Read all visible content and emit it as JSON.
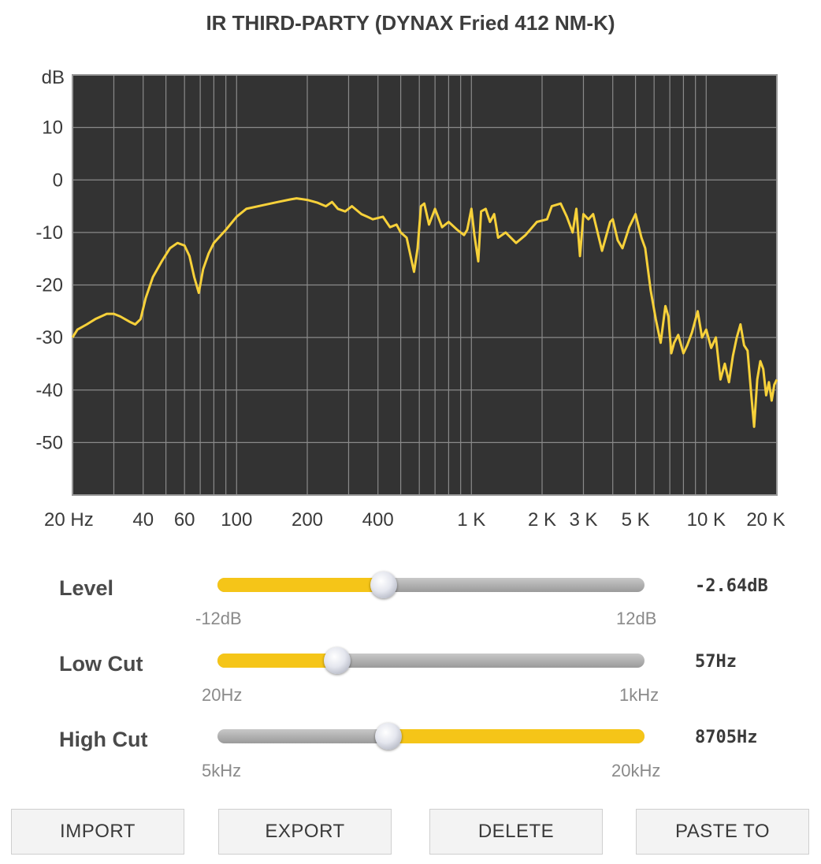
{
  "title": "IR THIRD-PARTY (DYNAX Fried 412 NM-K)",
  "chart_data": {
    "type": "line",
    "xscale": "log",
    "xlim": [
      20,
      20000
    ],
    "ylim": [
      -60,
      20
    ],
    "ylabel": "dB",
    "yticks": [
      10,
      0,
      -10,
      -20,
      -30,
      -40,
      -50
    ],
    "xticks": [
      {
        "value": 20,
        "label": "20 Hz"
      },
      {
        "value": 40,
        "label": "40"
      },
      {
        "value": 60,
        "label": "60"
      },
      {
        "value": 100,
        "label": "100"
      },
      {
        "value": 200,
        "label": "200"
      },
      {
        "value": 400,
        "label": "400"
      },
      {
        "value": 1000,
        "label": "1 K"
      },
      {
        "value": 2000,
        "label": "2 K"
      },
      {
        "value": 3000,
        "label": "3 K"
      },
      {
        "value": 5000,
        "label": "5 K"
      },
      {
        "value": 10000,
        "label": "10 K"
      },
      {
        "value": 20000,
        "label": "20 K"
      }
    ],
    "grid": true,
    "series": [
      {
        "color": "#f7d13a",
        "x": [
          20,
          21,
          23,
          25,
          28,
          30,
          32,
          35,
          37,
          39,
          41,
          44,
          48,
          52,
          56,
          60,
          63,
          66,
          69,
          72,
          76,
          80,
          90,
          100,
          110,
          130,
          150,
          170,
          180,
          200,
          220,
          240,
          255,
          270,
          290,
          310,
          340,
          360,
          380,
          420,
          450,
          480,
          500,
          530,
          560,
          570,
          590,
          610,
          630,
          660,
          700,
          750,
          800,
          870,
          930,
          960,
          1000,
          1030,
          1070,
          1100,
          1150,
          1200,
          1250,
          1300,
          1400,
          1550,
          1700,
          1900,
          2100,
          2200,
          2400,
          2550,
          2700,
          2800,
          2900,
          3000,
          3150,
          3300,
          3600,
          3900,
          4000,
          4200,
          4400,
          4700,
          5000,
          5300,
          5500,
          5800,
          6100,
          6400,
          6700,
          6900,
          7100,
          7300,
          7600,
          8000,
          8300,
          8700,
          9200,
          9600,
          10000,
          10500,
          11000,
          11500,
          12000,
          12500,
          13000,
          13500,
          14000,
          14500,
          15000,
          15500,
          16000,
          16500,
          17000,
          17500,
          18000,
          18500,
          19000,
          19500,
          20000
        ],
        "y": [
          -30,
          -28.5,
          -27.5,
          -26.5,
          -25.5,
          -25.5,
          -26,
          -27,
          -27.5,
          -26.5,
          -22.5,
          -18.5,
          -15.5,
          -13,
          -12,
          -12.5,
          -14.5,
          -18.5,
          -21.5,
          -17,
          -14,
          -12,
          -9.5,
          -7,
          -5.5,
          -4.8,
          -4.2,
          -3.7,
          -3.5,
          -3.8,
          -4.3,
          -5,
          -4.2,
          -5.5,
          -6,
          -5,
          -6.5,
          -7,
          -7.5,
          -7,
          -9,
          -8.5,
          -10,
          -11,
          -16,
          -17.5,
          -13,
          -5,
          -4.5,
          -8.5,
          -5.5,
          -9,
          -8,
          -9.5,
          -10.5,
          -9.5,
          -5.5,
          -10.5,
          -15.5,
          -6,
          -5.5,
          -8,
          -6.5,
          -11,
          -10,
          -12,
          -10.5,
          -8,
          -7.5,
          -5,
          -4.5,
          -7,
          -10,
          -5.5,
          -14.5,
          -6.5,
          -7.5,
          -6.5,
          -13.5,
          -8,
          -7.5,
          -11.5,
          -13,
          -9,
          -6.5,
          -11,
          -13,
          -21,
          -26.5,
          -31,
          -24,
          -26,
          -33,
          -31,
          -29.5,
          -33,
          -31.5,
          -29,
          -25,
          -30,
          -28.5,
          -32,
          -30,
          -38,
          -35,
          -38.5,
          -33.5,
          -30,
          -27.5,
          -31.5,
          -32.5,
          -40,
          -47,
          -38,
          -34.5,
          -36,
          -41,
          -38.5,
          -42,
          -39,
          -38
        ]
      }
    ]
  },
  "controls": {
    "level": {
      "label": "Level",
      "min_label": "-12dB",
      "max_label": "12dB",
      "value_label": "-2.64dB",
      "fraction": 0.39,
      "fill_side": "left"
    },
    "low_cut": {
      "label": "Low Cut",
      "min_label": "20Hz",
      "max_label": "1kHz",
      "value_label": "57Hz",
      "fraction": 0.28,
      "fill_side": "left"
    },
    "high_cut": {
      "label": "High Cut",
      "min_label": "5kHz",
      "max_label": "20kHz",
      "value_label": "8705Hz",
      "fraction": 0.4,
      "fill_side": "right"
    }
  },
  "buttons": {
    "import": "IMPORT",
    "export": "EXPORT",
    "delete": "DELETE",
    "paste_to": "PASTE TO"
  },
  "colors": {
    "plot_bg": "#333333",
    "grid": "#8a8a8a",
    "curve": "#f7d13a",
    "accent": "#f5c518"
  }
}
